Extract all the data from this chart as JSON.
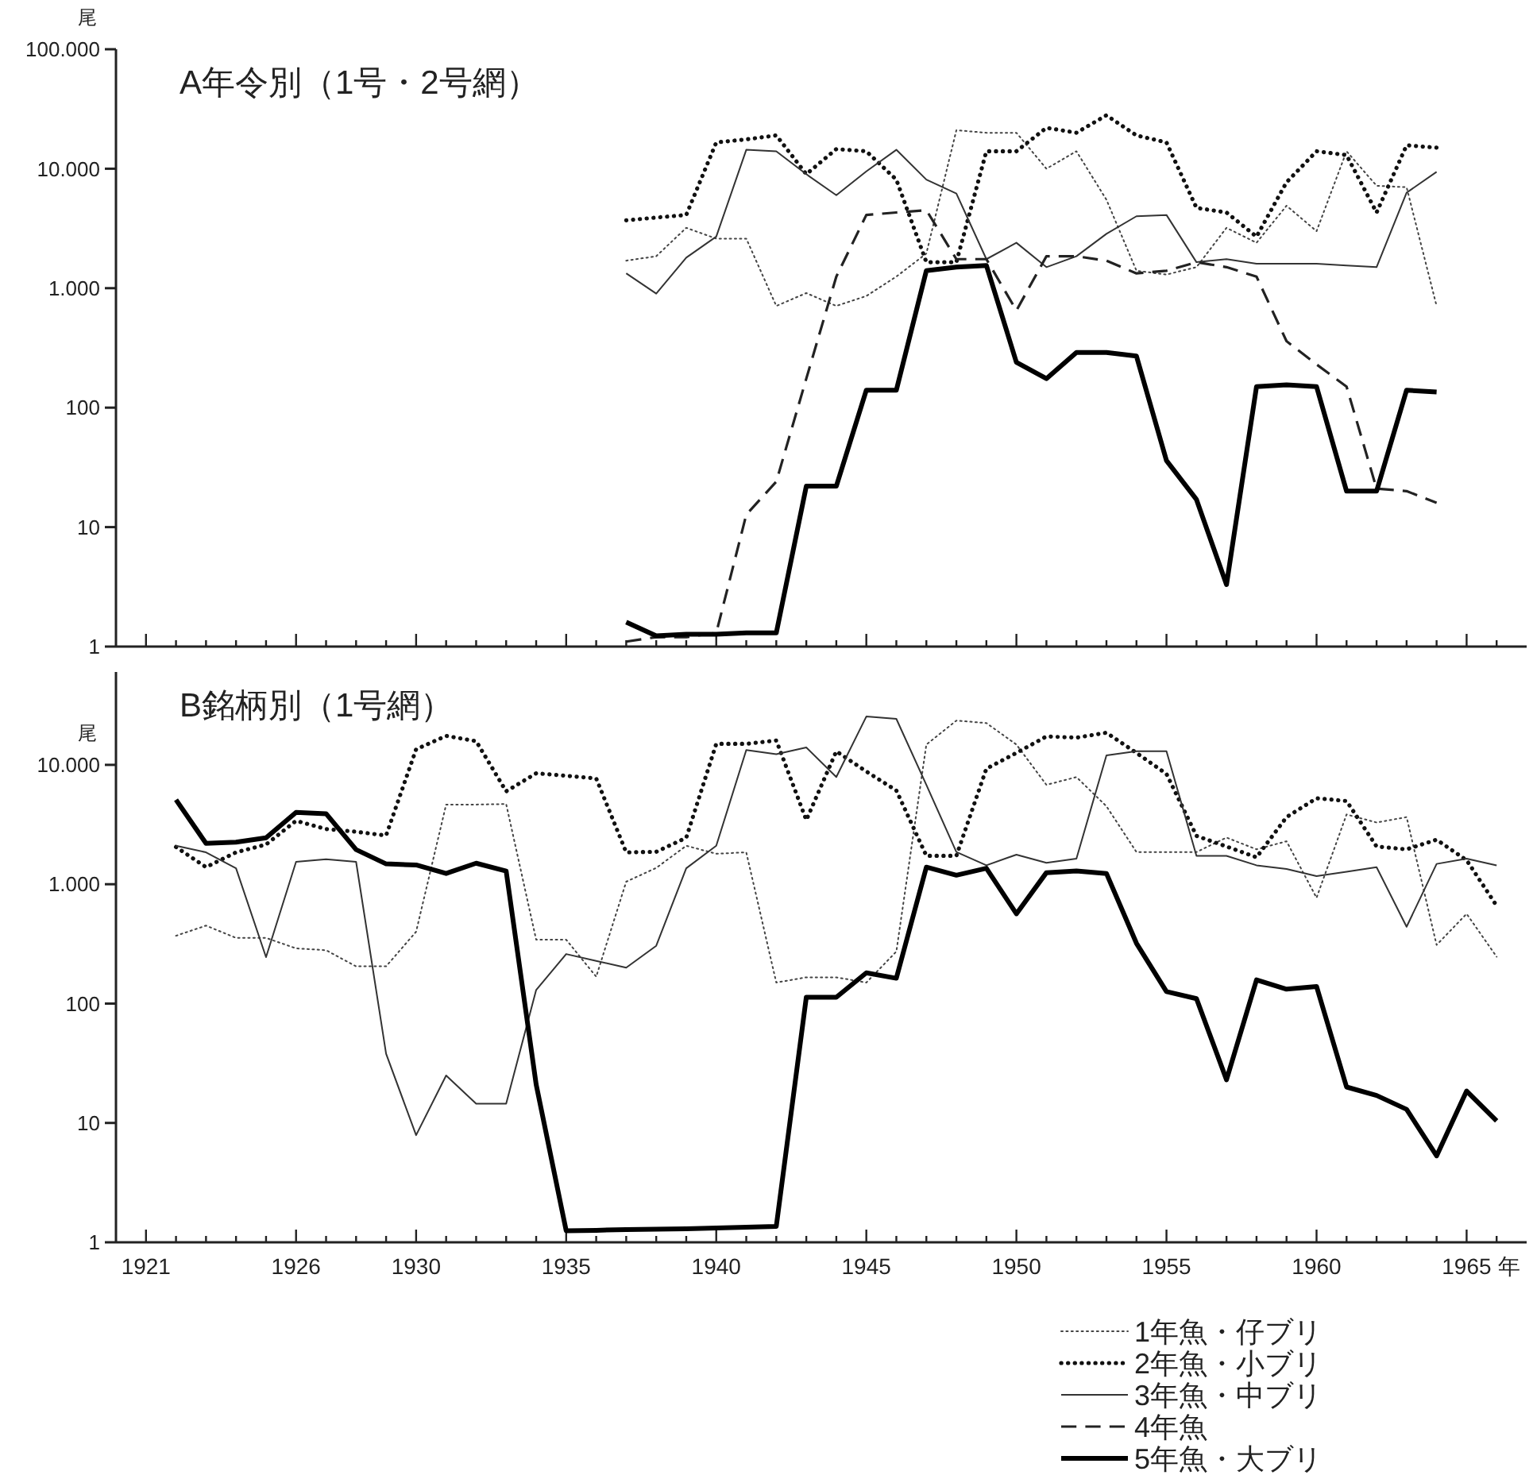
{
  "chart_data": [
    {
      "type": "line",
      "title": "A年令別（1号・2号網）",
      "ylabel": "尾",
      "log": true,
      "legend": "bottom right",
      "tick_labels": "y",
      "x": [
        1937,
        1938,
        1939,
        1940,
        1941,
        1942,
        1943,
        1944,
        1945,
        1946,
        1947,
        1948,
        1949,
        1950,
        1951,
        1952,
        1953,
        1954,
        1955,
        1956,
        1957,
        1958,
        1959,
        1960,
        1961,
        1962,
        1963,
        1964
      ],
      "xlim": [
        1920,
        1967
      ],
      "xticks": [
        {
          "value": 1921,
          "label": null
        },
        {
          "value": 1922,
          "label": null
        },
        {
          "value": 1923,
          "label": null
        },
        {
          "value": 1924,
          "label": null
        },
        {
          "value": 1925,
          "label": null
        },
        {
          "value": 1926,
          "label": null
        },
        {
          "value": 1927,
          "label": null
        },
        {
          "value": 1928,
          "label": null
        },
        {
          "value": 1929,
          "label": null
        },
        {
          "value": 1930,
          "label": null
        },
        {
          "value": 1931,
          "label": null
        },
        {
          "value": 1932,
          "label": null
        },
        {
          "value": 1933,
          "label": null
        },
        {
          "value": 1934,
          "label": null
        },
        {
          "value": 1935,
          "label": null
        },
        {
          "value": 1936,
          "label": null
        },
        {
          "value": 1937,
          "label": null
        },
        {
          "value": 1938,
          "label": null
        },
        {
          "value": 1939,
          "label": null
        },
        {
          "value": 1940,
          "label": null
        },
        {
          "value": 1941,
          "label": null
        },
        {
          "value": 1942,
          "label": null
        },
        {
          "value": 1943,
          "label": null
        },
        {
          "value": 1944,
          "label": null
        },
        {
          "value": 1945,
          "label": null
        },
        {
          "value": 1946,
          "label": null
        },
        {
          "value": 1947,
          "label": null
        },
        {
          "value": 1948,
          "label": null
        },
        {
          "value": 1949,
          "label": null
        },
        {
          "value": 1950,
          "label": null
        },
        {
          "value": 1951,
          "label": null
        },
        {
          "value": 1952,
          "label": null
        },
        {
          "value": 1953,
          "label": null
        },
        {
          "value": 1954,
          "label": null
        },
        {
          "value": 1955,
          "label": null
        },
        {
          "value": 1956,
          "label": null
        },
        {
          "value": 1957,
          "label": null
        },
        {
          "value": 1958,
          "label": null
        },
        {
          "value": 1959,
          "label": null
        },
        {
          "value": 1960,
          "label": null
        },
        {
          "value": 1961,
          "label": null
        },
        {
          "value": 1962,
          "label": null
        },
        {
          "value": 1963,
          "label": null
        },
        {
          "value": 1964,
          "label": null
        },
        {
          "value": 1965,
          "label": null
        },
        {
          "value": 1966,
          "label": null
        }
      ],
      "ylim": [
        1,
        100000
      ],
      "yticks": [
        {
          "value": 1,
          "label": "1"
        },
        {
          "value": 10,
          "label": "10"
        },
        {
          "value": 100,
          "label": "100"
        },
        {
          "value": 1000,
          "label": "1.000"
        },
        {
          "value": 10000,
          "label": "10.000"
        },
        {
          "value": 100000,
          "label": "100.000"
        }
      ],
      "series": [
        {
          "name": "1年魚・仔ブリ",
          "color": "#444444",
          "line_style": "dotted",
          "values": [
            1700,
            1850,
            3200,
            2600,
            2600,
            710,
            910,
            710,
            860,
            1250,
            1950,
            21000,
            20000,
            20000,
            10000,
            14000,
            5500,
            1400,
            1300,
            1500,
            3200,
            2400,
            4900,
            3000,
            14000,
            7200,
            7000,
            710
          ]
        },
        {
          "name": "2年魚・小ブリ",
          "color": "#111111",
          "line_style": "dotted",
          "values": [
            3700,
            3900,
            4100,
            16600,
            17600,
            19000,
            9000,
            14600,
            14000,
            8100,
            1650,
            1650,
            14000,
            14000,
            22000,
            20000,
            28000,
            19000,
            16600,
            4700,
            4300,
            2700,
            7700,
            14000,
            13000,
            4300,
            15700,
            15000
          ]
        },
        {
          "name": "3年魚・中ブリ",
          "color": "#333333",
          "line_style": "solid",
          "values": [
            1330,
            900,
            1800,
            2700,
            14400,
            14000,
            9000,
            6000,
            9500,
            14400,
            8100,
            6200,
            1750,
            2400,
            1500,
            1850,
            2850,
            4000,
            4100,
            1650,
            1750,
            1600,
            1600,
            1600,
            1550,
            1500,
            6300,
            9400
          ]
        },
        {
          "name": "4年魚",
          "color": "#222222",
          "line_style": "dashed",
          "values": [
            1.1,
            1.2,
            1.2,
            1.3,
            12.7,
            24,
            175,
            1250,
            4100,
            4300,
            4500,
            1750,
            1750,
            650,
            1850,
            1850,
            1700,
            1330,
            1400,
            1650,
            1500,
            1250,
            360,
            230,
            150,
            21,
            20,
            16
          ]
        },
        {
          "name": "5年魚・大ブリ",
          "color": "#000000",
          "line_style": "solid",
          "values": [
            1.6,
            1.23,
            1.27,
            1.27,
            1.3,
            1.3,
            22,
            22,
            140,
            140,
            1400,
            1500,
            1550,
            240,
            175,
            290,
            290,
            270,
            36,
            17,
            3.3,
            150,
            155,
            150,
            20,
            20,
            140,
            135
          ]
        }
      ]
    },
    {
      "type": "line",
      "title": "B銘柄別（1号網）",
      "ylabel": "尾",
      "xlabel": "年",
      "log": true,
      "x": [
        1922,
        1923,
        1924,
        1925,
        1926,
        1927,
        1928,
        1929,
        1930,
        1931,
        1932,
        1933,
        1934,
        1935,
        1936,
        1937,
        1938,
        1939,
        1940,
        1941,
        1942,
        1943,
        1944,
        1945,
        1946,
        1947,
        1948,
        1949,
        1950,
        1951,
        1952,
        1953,
        1954,
        1955,
        1956,
        1957,
        1958,
        1959,
        1960,
        1961,
        1962,
        1963,
        1964,
        1965,
        1966
      ],
      "xlim": [
        1920,
        1967
      ],
      "xticks": [
        {
          "value": 1921,
          "label": "1921"
        },
        {
          "value": 1922,
          "label": null
        },
        {
          "value": 1923,
          "label": null
        },
        {
          "value": 1924,
          "label": null
        },
        {
          "value": 1925,
          "label": null
        },
        {
          "value": 1926,
          "label": "1926"
        },
        {
          "value": 1927,
          "label": null
        },
        {
          "value": 1928,
          "label": null
        },
        {
          "value": 1929,
          "label": null
        },
        {
          "value": 1930,
          "label": "1930"
        },
        {
          "value": 1931,
          "label": null
        },
        {
          "value": 1932,
          "label": null
        },
        {
          "value": 1933,
          "label": null
        },
        {
          "value": 1934,
          "label": null
        },
        {
          "value": 1935,
          "label": "1935"
        },
        {
          "value": 1936,
          "label": null
        },
        {
          "value": 1937,
          "label": null
        },
        {
          "value": 1938,
          "label": null
        },
        {
          "value": 1939,
          "label": null
        },
        {
          "value": 1940,
          "label": "1940"
        },
        {
          "value": 1941,
          "label": null
        },
        {
          "value": 1942,
          "label": null
        },
        {
          "value": 1943,
          "label": null
        },
        {
          "value": 1944,
          "label": null
        },
        {
          "value": 1945,
          "label": "1945"
        },
        {
          "value": 1946,
          "label": null
        },
        {
          "value": 1947,
          "label": null
        },
        {
          "value": 1948,
          "label": null
        },
        {
          "value": 1949,
          "label": null
        },
        {
          "value": 1950,
          "label": "1950"
        },
        {
          "value": 1951,
          "label": null
        },
        {
          "value": 1952,
          "label": null
        },
        {
          "value": 1953,
          "label": null
        },
        {
          "value": 1954,
          "label": null
        },
        {
          "value": 1955,
          "label": "1955"
        },
        {
          "value": 1956,
          "label": null
        },
        {
          "value": 1957,
          "label": null
        },
        {
          "value": 1958,
          "label": null
        },
        {
          "value": 1959,
          "label": null
        },
        {
          "value": 1960,
          "label": "1960"
        },
        {
          "value": 1961,
          "label": null
        },
        {
          "value": 1962,
          "label": null
        },
        {
          "value": 1963,
          "label": null
        },
        {
          "value": 1964,
          "label": null
        },
        {
          "value": 1965,
          "label": "1965"
        },
        {
          "value": 1966,
          "label": null
        }
      ],
      "ylim": [
        1,
        60000
      ],
      "yticks": [
        {
          "value": 1,
          "label": "1"
        },
        {
          "value": 10,
          "label": "10"
        },
        {
          "value": 100,
          "label": "100"
        },
        {
          "value": 1000,
          "label": "1.000"
        },
        {
          "value": 10000,
          "label": "10.000"
        }
      ],
      "series": [
        {
          "color": "#444444",
          "line_style": "dotted",
          "values": [
            370,
            450,
            355,
            355,
            290,
            280,
            205,
            205,
            400,
            4650,
            4650,
            4700,
            343,
            343,
            168,
            1050,
            1370,
            2100,
            1800,
            1850,
            150,
            166,
            166,
            150,
            273,
            14800,
            23500,
            22400,
            14800,
            6800,
            7900,
            4500,
            1860,
            1860,
            1860,
            2460,
            1960,
            2290,
            770,
            3840,
            3290,
            3650,
            310,
            565,
            247
          ]
        },
        {
          "color": "#111111",
          "line_style": "dotted",
          "values": [
            2050,
            1390,
            1850,
            2150,
            3400,
            2900,
            2750,
            2560,
            13500,
            17500,
            15800,
            6000,
            8500,
            8100,
            7700,
            1850,
            1870,
            2450,
            15000,
            15000,
            16000,
            3450,
            13000,
            8800,
            6100,
            1730,
            1730,
            9300,
            12600,
            17300,
            16900,
            18600,
            12600,
            8400,
            2540,
            2070,
            1680,
            3650,
            5250,
            4980,
            2070,
            1960,
            2360,
            1590,
            660
          ]
        },
        {
          "color": "#333333",
          "line_style": "solid",
          "values": [
            2100,
            1850,
            1360,
            245,
            1540,
            1620,
            1540,
            38,
            7.9,
            25,
            14.5,
            14.5,
            130,
            260,
            228,
            200,
            305,
            1360,
            2100,
            13300,
            12300,
            14000,
            7900,
            25400,
            24300,
            6800,
            1860,
            1440,
            1770,
            1510,
            1640,
            12000,
            13000,
            13000,
            1730,
            1730,
            1440,
            1340,
            1170,
            1270,
            1390,
            440,
            1480,
            1640,
            1440
          ]
        },
        {
          "color": "#000000",
          "line_style": "solid",
          "values": [
            5100,
            2200,
            2250,
            2450,
            4000,
            3900,
            1950,
            1480,
            1450,
            1230,
            1500,
            1290,
            21,
            1.25,
            1.26,
            1.28,
            1.29,
            1.3,
            1.32,
            1.34,
            1.36,
            113,
            113,
            181,
            163,
            1390,
            1190,
            1360,
            565,
            1250,
            1290,
            1230,
            320,
            126,
            110,
            23,
            158,
            132,
            139,
            20,
            17,
            13,
            5.3,
            18.5,
            10.4
          ]
        }
      ]
    }
  ]
}
